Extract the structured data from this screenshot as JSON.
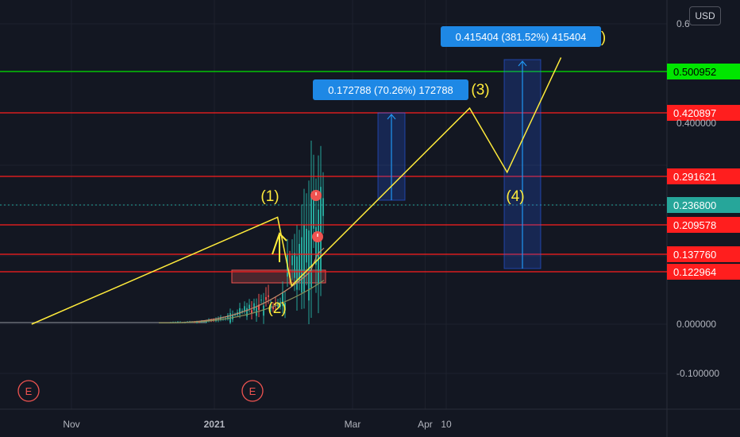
{
  "currency_button": "USD",
  "colors": {
    "background": "#131722",
    "grid": "#1e222d",
    "wave": "#ffeb3b",
    "resistance": "#ff1e1e",
    "target": "#00e600",
    "current": "#26a69a",
    "measure": "#2962ff",
    "candle_up": "#26a69a",
    "candle_down": "#ef5350"
  },
  "axis": {
    "y_ticks": [
      "0.400000",
      "0.000000",
      "-0.100000"
    ],
    "y_partial_top": "0.6",
    "x_ticks": [
      "Nov",
      "2021",
      "Mar",
      "Apr",
      "10"
    ]
  },
  "events": [
    "E",
    "E"
  ],
  "chart_data": {
    "type": "line",
    "title": "",
    "price_levels": [
      {
        "value": "0.500952",
        "kind": "target"
      },
      {
        "value": "0.420897",
        "kind": "resistance"
      },
      {
        "value": "0.291621",
        "kind": "resistance"
      },
      {
        "value": "0.236800",
        "kind": "current"
      },
      {
        "value": "0.209578",
        "kind": "resistance"
      },
      {
        "value": "0.137760",
        "kind": "resistance"
      },
      {
        "value": "0.122964",
        "kind": "resistance"
      }
    ],
    "wave_labels": [
      "(1)",
      "(2)",
      "(3)",
      "(4)",
      ")"
    ],
    "measurements": [
      {
        "text": "0.172788 (70.26%) 172788"
      },
      {
        "text": "0.415404 (381.52%) 415404"
      }
    ],
    "wave_points": [
      {
        "date": "2020-10-15",
        "price": 0.0
      },
      {
        "date": "2021-01-28",
        "price": 0.22
      },
      {
        "date": "2021-02-03",
        "price": 0.09
      },
      {
        "date": "2021-04-20",
        "price": 0.43
      },
      {
        "date": "2021-05-06",
        "price": 0.3
      },
      {
        "date": "2021-05-29",
        "price": 0.53
      }
    ]
  }
}
